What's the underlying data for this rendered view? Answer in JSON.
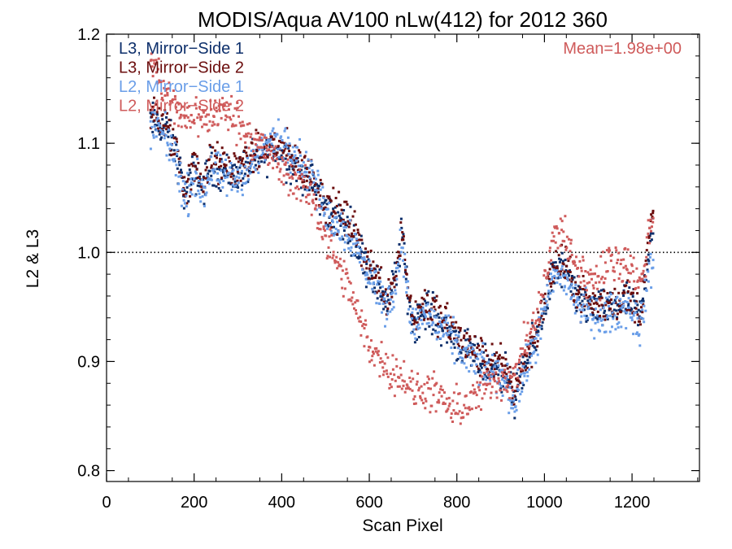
{
  "chart_data": {
    "type": "scatter",
    "title": "MODIS/Aqua AV100 nLw(412) for 2012 360",
    "xlabel": "Scan Pixel",
    "ylabel": "L2 & L3",
    "xlim": [
      0,
      1354
    ],
    "ylim": [
      0.79,
      1.2
    ],
    "xticks": [
      "0",
      "200",
      "400",
      "600",
      "800",
      "1000",
      "1200"
    ],
    "yticks": [
      "0.8",
      "0.9",
      "1.0",
      "1.1",
      "1.2"
    ],
    "reference_line": 1.0,
    "annotation": "Mean=1.98e+00",
    "legend_position": "top-left",
    "series": [
      {
        "name": "L3, Mirror−Side 1",
        "color": "#0d2f6b",
        "profile": [
          [
            100,
            1.12
          ],
          [
            130,
            1.115
          ],
          [
            160,
            1.09
          ],
          [
            180,
            1.05
          ],
          [
            200,
            1.075
          ],
          [
            220,
            1.06
          ],
          [
            240,
            1.08
          ],
          [
            260,
            1.075
          ],
          [
            290,
            1.07
          ],
          [
            320,
            1.08
          ],
          [
            350,
            1.085
          ],
          [
            380,
            1.095
          ],
          [
            400,
            1.09
          ],
          [
            430,
            1.08
          ],
          [
            450,
            1.07
          ],
          [
            470,
            1.065
          ],
          [
            500,
            1.04
          ],
          [
            530,
            1.03
          ],
          [
            560,
            1.02
          ],
          [
            580,
            1.0
          ],
          [
            600,
            0.985
          ],
          [
            620,
            0.97
          ],
          [
            640,
            0.955
          ],
          [
            660,
            0.975
          ],
          [
            675,
            1.02
          ],
          [
            685,
            0.97
          ],
          [
            700,
            0.935
          ],
          [
            730,
            0.95
          ],
          [
            760,
            0.935
          ],
          [
            790,
            0.925
          ],
          [
            820,
            0.91
          ],
          [
            850,
            0.9
          ],
          [
            880,
            0.895
          ],
          [
            910,
            0.89
          ],
          [
            930,
            0.865
          ],
          [
            950,
            0.89
          ],
          [
            980,
            0.92
          ],
          [
            1000,
            0.95
          ],
          [
            1020,
            0.98
          ],
          [
            1040,
            0.985
          ],
          [
            1060,
            0.97
          ],
          [
            1080,
            0.955
          ],
          [
            1100,
            0.95
          ],
          [
            1130,
            0.945
          ],
          [
            1160,
            0.95
          ],
          [
            1190,
            0.955
          ],
          [
            1220,
            0.94
          ],
          [
            1240,
            1.01
          ],
          [
            1250,
            1.03
          ]
        ]
      },
      {
        "name": "L3, Mirror−Side 2",
        "color": "#6b0d0d",
        "profile": [
          [
            100,
            1.125
          ],
          [
            130,
            1.12
          ],
          [
            160,
            1.095
          ],
          [
            180,
            1.055
          ],
          [
            200,
            1.08
          ],
          [
            220,
            1.065
          ],
          [
            240,
            1.085
          ],
          [
            260,
            1.08
          ],
          [
            290,
            1.075
          ],
          [
            320,
            1.085
          ],
          [
            350,
            1.09
          ],
          [
            380,
            1.1
          ],
          [
            400,
            1.095
          ],
          [
            430,
            1.085
          ],
          [
            450,
            1.075
          ],
          [
            470,
            1.07
          ],
          [
            500,
            1.045
          ],
          [
            530,
            1.035
          ],
          [
            560,
            1.025
          ],
          [
            580,
            1.005
          ],
          [
            600,
            0.99
          ],
          [
            620,
            0.975
          ],
          [
            640,
            0.96
          ],
          [
            660,
            0.98
          ],
          [
            675,
            1.025
          ],
          [
            685,
            0.975
          ],
          [
            700,
            0.94
          ],
          [
            730,
            0.955
          ],
          [
            760,
            0.94
          ],
          [
            790,
            0.93
          ],
          [
            820,
            0.915
          ],
          [
            850,
            0.905
          ],
          [
            880,
            0.9
          ],
          [
            910,
            0.895
          ],
          [
            930,
            0.875
          ],
          [
            950,
            0.895
          ],
          [
            980,
            0.925
          ],
          [
            1000,
            0.955
          ],
          [
            1020,
            0.985
          ],
          [
            1040,
            0.99
          ],
          [
            1060,
            0.975
          ],
          [
            1080,
            0.96
          ],
          [
            1100,
            0.955
          ],
          [
            1130,
            0.95
          ],
          [
            1160,
            0.955
          ],
          [
            1190,
            0.96
          ],
          [
            1220,
            0.945
          ],
          [
            1240,
            1.015
          ],
          [
            1250,
            1.04
          ]
        ]
      },
      {
        "name": "L2, Mirror−Side 1",
        "color": "#6a9ee8",
        "profile": [
          [
            100,
            1.115
          ],
          [
            130,
            1.11
          ],
          [
            160,
            1.085
          ],
          [
            180,
            1.045
          ],
          [
            200,
            1.07
          ],
          [
            220,
            1.055
          ],
          [
            240,
            1.075
          ],
          [
            260,
            1.07
          ],
          [
            290,
            1.065
          ],
          [
            320,
            1.075
          ],
          [
            350,
            1.09
          ],
          [
            380,
            1.105
          ],
          [
            400,
            1.1
          ],
          [
            430,
            1.095
          ],
          [
            450,
            1.08
          ],
          [
            470,
            1.07
          ],
          [
            500,
            1.035
          ],
          [
            530,
            1.025
          ],
          [
            560,
            1.015
          ],
          [
            580,
            0.995
          ],
          [
            600,
            0.98
          ],
          [
            620,
            0.965
          ],
          [
            640,
            0.95
          ],
          [
            660,
            0.97
          ],
          [
            675,
            1.015
          ],
          [
            685,
            0.965
          ],
          [
            700,
            0.93
          ],
          [
            730,
            0.945
          ],
          [
            760,
            0.93
          ],
          [
            790,
            0.92
          ],
          [
            820,
            0.905
          ],
          [
            850,
            0.895
          ],
          [
            880,
            0.89
          ],
          [
            910,
            0.885
          ],
          [
            930,
            0.86
          ],
          [
            950,
            0.885
          ],
          [
            980,
            0.915
          ],
          [
            1000,
            0.945
          ],
          [
            1020,
            0.975
          ],
          [
            1040,
            0.98
          ],
          [
            1060,
            0.965
          ],
          [
            1080,
            0.95
          ],
          [
            1100,
            0.945
          ],
          [
            1130,
            0.94
          ],
          [
            1160,
            0.945
          ],
          [
            1190,
            0.95
          ],
          [
            1220,
            0.93
          ],
          [
            1240,
            0.985
          ],
          [
            1250,
            0.99
          ]
        ]
      },
      {
        "name": "L2, Mirror−Side 2",
        "color": "#cf5b5b",
        "profile": [
          [
            100,
            1.18
          ],
          [
            130,
            1.15
          ],
          [
            160,
            1.13
          ],
          [
            180,
            1.12
          ],
          [
            200,
            1.13
          ],
          [
            220,
            1.12
          ],
          [
            240,
            1.125
          ],
          [
            260,
            1.13
          ],
          [
            290,
            1.125
          ],
          [
            320,
            1.11
          ],
          [
            350,
            1.1
          ],
          [
            380,
            1.085
          ],
          [
            400,
            1.075
          ],
          [
            430,
            1.065
          ],
          [
            450,
            1.06
          ],
          [
            470,
            1.05
          ],
          [
            500,
            1.015
          ],
          [
            530,
            0.985
          ],
          [
            560,
            0.96
          ],
          [
            580,
            0.935
          ],
          [
            600,
            0.915
          ],
          [
            620,
            0.905
          ],
          [
            640,
            0.895
          ],
          [
            660,
            0.89
          ],
          [
            680,
            0.885
          ],
          [
            700,
            0.87
          ],
          [
            730,
            0.875
          ],
          [
            760,
            0.865
          ],
          [
            790,
            0.855
          ],
          [
            820,
            0.86
          ],
          [
            850,
            0.87
          ],
          [
            880,
            0.88
          ],
          [
            910,
            0.885
          ],
          [
            930,
            0.88
          ],
          [
            950,
            0.91
          ],
          [
            980,
            0.935
          ],
          [
            1000,
            0.97
          ],
          [
            1020,
            1.01
          ],
          [
            1040,
            1.02
          ],
          [
            1060,
            1.0
          ],
          [
            1080,
            0.985
          ],
          [
            1100,
            0.975
          ],
          [
            1130,
            0.98
          ],
          [
            1160,
            0.995
          ],
          [
            1190,
            0.99
          ],
          [
            1220,
            0.97
          ],
          [
            1240,
            1.02
          ],
          [
            1250,
            1.035
          ]
        ]
      }
    ]
  }
}
